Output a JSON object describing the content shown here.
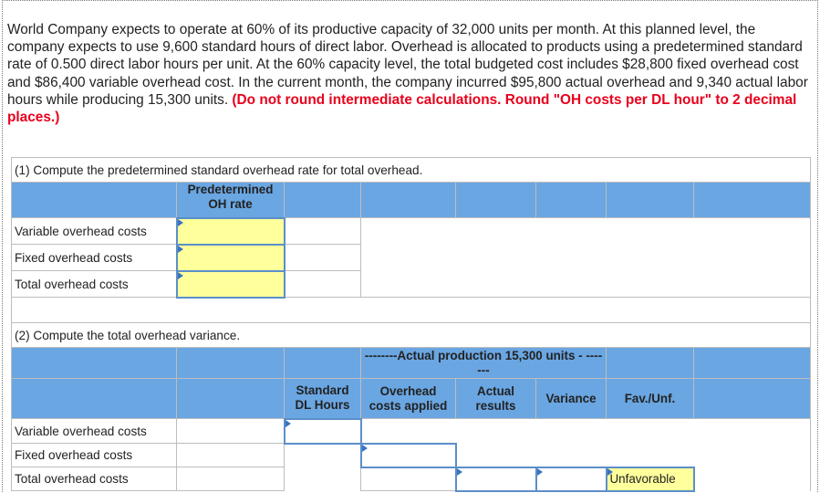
{
  "problem": {
    "text": "World Company expects to operate at 60% of its productive capacity of 32,000 units per month. At this planned level, the company expects to use 9,600 standard hours of direct labor. Overhead is allocated to products using a predetermined standard rate of 0.500 direct labor hours per unit. At the 60% capacity level, the total budgeted cost includes $28,800 fixed overhead cost and $86,400 variable overhead cost. In the current month, the company incurred $95,800 actual overhead and 9,340 actual labor hours while producing 15,300 units.",
    "instruction": "(Do not round intermediate calculations. Round \"OH costs per DL hour\" to 2 decimal places.)"
  },
  "part1": {
    "title": "(1) Compute the predetermined standard overhead rate for total overhead.",
    "header": "Predetermined OH rate",
    "rows": [
      "Variable overhead costs",
      "Fixed overhead costs",
      "Total overhead costs"
    ]
  },
  "part2": {
    "title": "(2) Compute the total overhead variance.",
    "span_header": "--------Actual production 15,300 units - -------",
    "headers": [
      "Standard DL Hours",
      "Overhead costs applied",
      "Actual results",
      "Variance",
      "Fav./Unf."
    ],
    "rows": [
      "Variable overhead costs",
      "Fixed overhead costs",
      "Total overhead costs"
    ],
    "total_fav_unf": "Unfavorable"
  }
}
